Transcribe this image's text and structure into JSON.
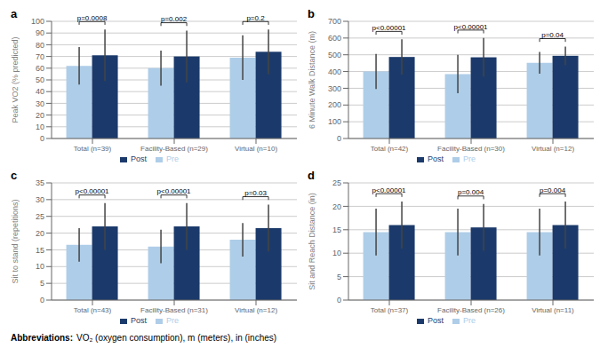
{
  "chart_data": [
    {
      "type": "bar",
      "title": "a",
      "ylabel": "Peak VO2 (% predicted)",
      "categories": [
        "Total (n=39)",
        "Facility-Based (n=29)",
        "Virtual (n=10)"
      ],
      "series": [
        {
          "name": "Pre",
          "color": "#aecde8",
          "values": [
            62,
            60,
            69
          ],
          "error_low": [
            16,
            15,
            19
          ],
          "error_high": [
            16,
            15,
            19
          ]
        },
        {
          "name": "Post",
          "color": "#1b3a6b",
          "values": [
            71,
            70,
            74
          ],
          "error_low": [
            22,
            22,
            19
          ],
          "error_high": [
            22,
            22,
            19
          ]
        }
      ],
      "annotations": [
        "p=0.0008",
        "p=0.002",
        "p=0.2"
      ],
      "ylim": [
        0,
        100
      ],
      "yticks": [
        0,
        10,
        20,
        30,
        40,
        50,
        60,
        70,
        80,
        90,
        100
      ],
      "grid": true,
      "legend": "bottom"
    },
    {
      "type": "bar",
      "title": "b",
      "ylabel": "6 Minute Walk Distance (m)",
      "categories": [
        "Total (n=42)",
        "Facility-Based (n=30)",
        "Virtual (n=12)"
      ],
      "series": [
        {
          "name": "Pre",
          "color": "#aecde8",
          "values": [
            400,
            385,
            452
          ],
          "error_low": [
            105,
            115,
            65
          ],
          "error_high": [
            105,
            115,
            65
          ]
        },
        {
          "name": "Post",
          "color": "#1b3a6b",
          "values": [
            487,
            485,
            494
          ],
          "error_low": [
            105,
            115,
            55
          ],
          "error_high": [
            105,
            115,
            55
          ]
        }
      ],
      "annotations": [
        "p<0.00001",
        "p<0.00001",
        "p=0.04"
      ],
      "ylim": [
        0,
        700
      ],
      "yticks": [
        0,
        100,
        200,
        300,
        400,
        500,
        600,
        700
      ],
      "grid": true,
      "legend": "bottom"
    },
    {
      "type": "bar",
      "title": "c",
      "ylabel": "Sit to stand (repetitions)",
      "categories": [
        "Total (n=43)",
        "Facility-Based (n=31)",
        "Virtual (n=12)"
      ],
      "series": [
        {
          "name": "Pre",
          "color": "#aecde8",
          "values": [
            16.5,
            16,
            18
          ],
          "error_low": [
            5,
            5,
            5
          ],
          "error_high": [
            5,
            5,
            5
          ]
        },
        {
          "name": "Post",
          "color": "#1b3a6b",
          "values": [
            22,
            22,
            21.5
          ],
          "error_low": [
            7,
            7,
            7
          ],
          "error_high": [
            7,
            7,
            7
          ]
        }
      ],
      "annotations": [
        "p<0.00001",
        "p<0.00001",
        "p=0.03"
      ],
      "ylim": [
        0,
        35
      ],
      "yticks": [
        0,
        5,
        10,
        15,
        20,
        25,
        30,
        35
      ],
      "grid": true,
      "legend": "bottom"
    },
    {
      "type": "bar",
      "title": "d",
      "ylabel": "Sit and Reach Distance (in)",
      "categories": [
        "Total (n=37)",
        "Facility-Based (n=26)",
        "Virtual (n=11)"
      ],
      "series": [
        {
          "name": "Pre",
          "color": "#aecde8",
          "values": [
            14.5,
            14.5,
            14.5
          ],
          "error_low": [
            5,
            5,
            5
          ],
          "error_high": [
            5,
            5,
            5
          ]
        },
        {
          "name": "Post",
          "color": "#1b3a6b",
          "values": [
            16,
            15.5,
            16
          ],
          "error_low": [
            5,
            5,
            5
          ],
          "error_high": [
            5,
            5,
            5
          ]
        }
      ],
      "annotations": [
        "p<0.00001",
        "p=0.004",
        "p=0.004"
      ],
      "ylim": [
        0,
        25
      ],
      "yticks": [
        0,
        5,
        10,
        15,
        20,
        25
      ],
      "grid": true,
      "legend": "bottom"
    }
  ],
  "annotations": [
    "Abbreviations:",
    "VO₂ (oxygen consumption), m (meters), in (inches)"
  ]
}
